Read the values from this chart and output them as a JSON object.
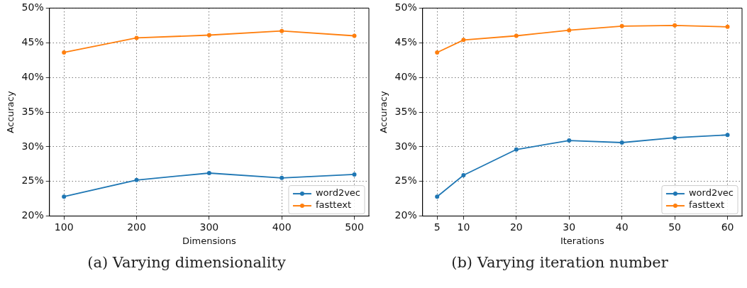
{
  "chart_data": [
    {
      "type": "line",
      "title": "(a) Varying dimensionality",
      "xlabel": "Dimensions",
      "ylabel": "Accuracy",
      "x": [
        100,
        200,
        300,
        400,
        500
      ],
      "xlim": [
        80,
        520
      ],
      "xticks": [
        100,
        200,
        300,
        400,
        500
      ],
      "ylim": [
        20,
        50
      ],
      "yticks": [
        {
          "value": 20,
          "label": "20%"
        },
        {
          "value": 25,
          "label": "25%"
        },
        {
          "value": 30,
          "label": "30%"
        },
        {
          "value": 35,
          "label": "35%"
        },
        {
          "value": 40,
          "label": "40%"
        },
        {
          "value": 45,
          "label": "45%"
        },
        {
          "value": 50,
          "label": "50%"
        }
      ],
      "grid": true,
      "legend": "bottom right",
      "marker": "circle",
      "line_style": "solid",
      "series": [
        {
          "name": "word2vec",
          "color": "#1f77b4",
          "values": [
            22.8,
            25.2,
            26.2,
            25.5,
            26.0
          ]
        },
        {
          "name": "fasttext",
          "color": "#ff7f0e",
          "values": [
            43.6,
            45.7,
            46.1,
            46.7,
            46.0
          ]
        }
      ]
    },
    {
      "type": "line",
      "title": "(b) Varying iteration number",
      "xlabel": "Iterations",
      "ylabel": "Accuracy",
      "x": [
        5,
        10,
        20,
        30,
        40,
        50,
        60
      ],
      "xlim": [
        2.25,
        62.75
      ],
      "xticks": [
        5,
        10,
        20,
        30,
        40,
        50,
        60
      ],
      "ylim": [
        20,
        50
      ],
      "yticks": [
        {
          "value": 20,
          "label": "20%"
        },
        {
          "value": 25,
          "label": "25%"
        },
        {
          "value": 30,
          "label": "30%"
        },
        {
          "value": 35,
          "label": "35%"
        },
        {
          "value": 40,
          "label": "40%"
        },
        {
          "value": 45,
          "label": "45%"
        },
        {
          "value": 50,
          "label": "50%"
        }
      ],
      "grid": true,
      "legend": "bottom right",
      "marker": "circle",
      "line_style": "solid",
      "series": [
        {
          "name": "word2vec",
          "color": "#1f77b4",
          "values": [
            22.8,
            25.9,
            29.6,
            30.9,
            30.6,
            31.3,
            31.7
          ]
        },
        {
          "name": "fasttext",
          "color": "#ff7f0e",
          "values": [
            43.6,
            45.4,
            46.0,
            46.8,
            47.4,
            47.5,
            47.3
          ]
        }
      ]
    }
  ]
}
